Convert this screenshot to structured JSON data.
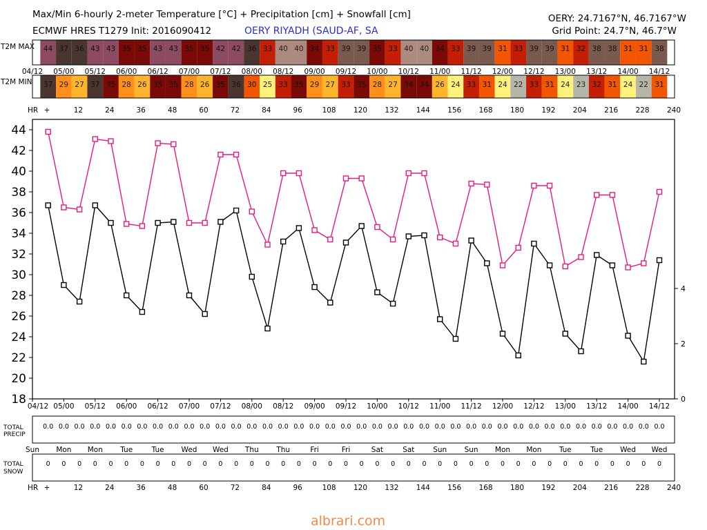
{
  "header": {
    "title_line1": "Max/Min 6-hourly 2-meter Temperature [°C] + Precipitation [cm] + Snowfall [cm]",
    "title_line2": "ECMWF HRES T1279 Init: 2016090412",
    "station": "OERY RIYADH (SAUD-AF, SA",
    "coord_line1": "OERY: 24.7167°N, 46.7167°W",
    "coord_line2": "Grid Point: 24.7°N, 46.7°W"
  },
  "watermark": "albrari.com",
  "chart_data": {
    "type": "line",
    "title": "Max/Min 6-hourly 2-meter Temperature [°C] + Precipitation [cm] + Snowfall [cm]",
    "hours": [
      6,
      12,
      18,
      24,
      30,
      36,
      42,
      48,
      54,
      60,
      66,
      72,
      78,
      84,
      90,
      96,
      102,
      108,
      114,
      120,
      126,
      132,
      138,
      144,
      150,
      156,
      162,
      168,
      174,
      180,
      186,
      192,
      198,
      204,
      210,
      216,
      222,
      228,
      234,
      240
    ],
    "date_labels": [
      "04/12",
      "05/00",
      "05/12",
      "06/00",
      "06/12",
      "07/00",
      "07/12",
      "08/00",
      "08/12",
      "09/00",
      "09/12",
      "10/00",
      "10/12",
      "11/00",
      "11/12",
      "12/00",
      "12/12",
      "13/00",
      "13/12",
      "14/00",
      "14/12"
    ],
    "hour_labels": [
      "+",
      "12",
      "24",
      "36",
      "48",
      "60",
      "72",
      "84",
      "96",
      "108",
      "120",
      "132",
      "144",
      "156",
      "168",
      "180",
      "192",
      "204",
      "216",
      "228",
      "240"
    ],
    "day_labels": [
      "Sun",
      "Mon",
      "Mon",
      "Tue",
      "Tue",
      "Wed",
      "Wed",
      "Thu",
      "Thu",
      "Fri",
      "Fri",
      "Sat",
      "Sat",
      "Sun",
      "Sun",
      "Mon",
      "Mon",
      "Tue",
      "Tue",
      "Wed",
      "Wed"
    ],
    "yaxis_left": {
      "ticks": [
        18,
        20,
        22,
        24,
        26,
        28,
        30,
        32,
        34,
        36,
        38,
        40,
        42,
        44
      ],
      "ylim": [
        18,
        45
      ]
    },
    "yaxis_right": {
      "ticks": [
        0,
        2,
        4
      ]
    },
    "series": [
      {
        "name": "T2M MAX",
        "color": "#e6197e",
        "values": [
          43.8,
          36.5,
          36.3,
          43.1,
          42.9,
          34.9,
          34.7,
          42.7,
          42.6,
          35,
          35,
          41.6,
          41.6,
          36.1,
          32.9,
          39.8,
          39.8,
          34.3,
          33.4,
          39.3,
          39.3,
          34.6,
          33.4,
          39.8,
          39.8,
          33.6,
          33,
          38.8,
          38.7,
          30.9,
          32.6,
          38.6,
          38.6,
          30.8,
          31.7,
          37.7,
          37.7,
          30.7,
          31.1,
          38
        ]
      },
      {
        "name": "T2M MIN",
        "color": "#000000",
        "values": [
          36.7,
          29,
          27.4,
          36.7,
          35,
          28,
          26.4,
          35,
          35.1,
          28,
          26.2,
          35.1,
          36.2,
          29.8,
          24.8,
          33.2,
          34.5,
          28.8,
          27.3,
          33.1,
          34.7,
          28.3,
          27.2,
          33.7,
          33.8,
          25.7,
          23.8,
          33.3,
          31.1,
          24.3,
          22.2,
          33,
          30.9,
          24.3,
          22.6,
          31.9,
          30.9,
          24.1,
          21.6,
          31.4
        ]
      }
    ],
    "table_rows": [
      {
        "label": "T2M MAX",
        "values": [
          44,
          37,
          36,
          43,
          43,
          35,
          35,
          43,
          43,
          35,
          35,
          42,
          42,
          36,
          33,
          40,
          40,
          34,
          33,
          39,
          39,
          35,
          33,
          40,
          40,
          34,
          33,
          39,
          39,
          31,
          33,
          39,
          39,
          31,
          32,
          38,
          38,
          31,
          31,
          38
        ]
      },
      {
        "label": "T2M MIN",
        "values": [
          37,
          29,
          27,
          37,
          35,
          28,
          26,
          35,
          35,
          28,
          26,
          35,
          36,
          30,
          25,
          33,
          35,
          29,
          27,
          33,
          35,
          28,
          27,
          34,
          34,
          26,
          24,
          33,
          31,
          24,
          22,
          33,
          31,
          24,
          23,
          32,
          31,
          24,
          22,
          31
        ]
      }
    ],
    "precip_label": [
      "TOTAL",
      "PRECIP"
    ],
    "precip_values": [
      "0.0",
      "0.0",
      "0.0",
      "0.0",
      "0.0",
      "0.0",
      "0.0",
      "0.0",
      "0.0",
      "0.0",
      "0.0",
      "0.0",
      "0.0",
      "0.0",
      "0.0",
      "0.0",
      "0.0",
      "0.0",
      "0.0",
      "0.0",
      "0.0",
      "0.0",
      "0.0",
      "0.0",
      "0.0",
      "0.0",
      "0.0",
      "0.0",
      "0.0",
      "0.0",
      "0.0",
      "0.0",
      "0.0",
      "0.0",
      "0.0",
      "0.0",
      "0.0",
      "0.0",
      "0.0",
      "0.0"
    ],
    "snow_label": [
      "TOTAL",
      "SNOW"
    ],
    "snow_values": [
      "0",
      "0",
      "0",
      "0",
      "0",
      "0",
      "0",
      "0",
      "0",
      "0",
      "0",
      "0",
      "0",
      "0",
      "0",
      "0",
      "0",
      "0",
      "0",
      "0",
      "0",
      "0",
      "0",
      "0",
      "0",
      "0",
      "0",
      "0",
      "0",
      "0",
      "0",
      "0",
      "0",
      "0",
      "0",
      "0",
      "0",
      "0",
      "0",
      "0"
    ],
    "hr_label": "HR",
    "grid": false,
    "legend": "none"
  }
}
